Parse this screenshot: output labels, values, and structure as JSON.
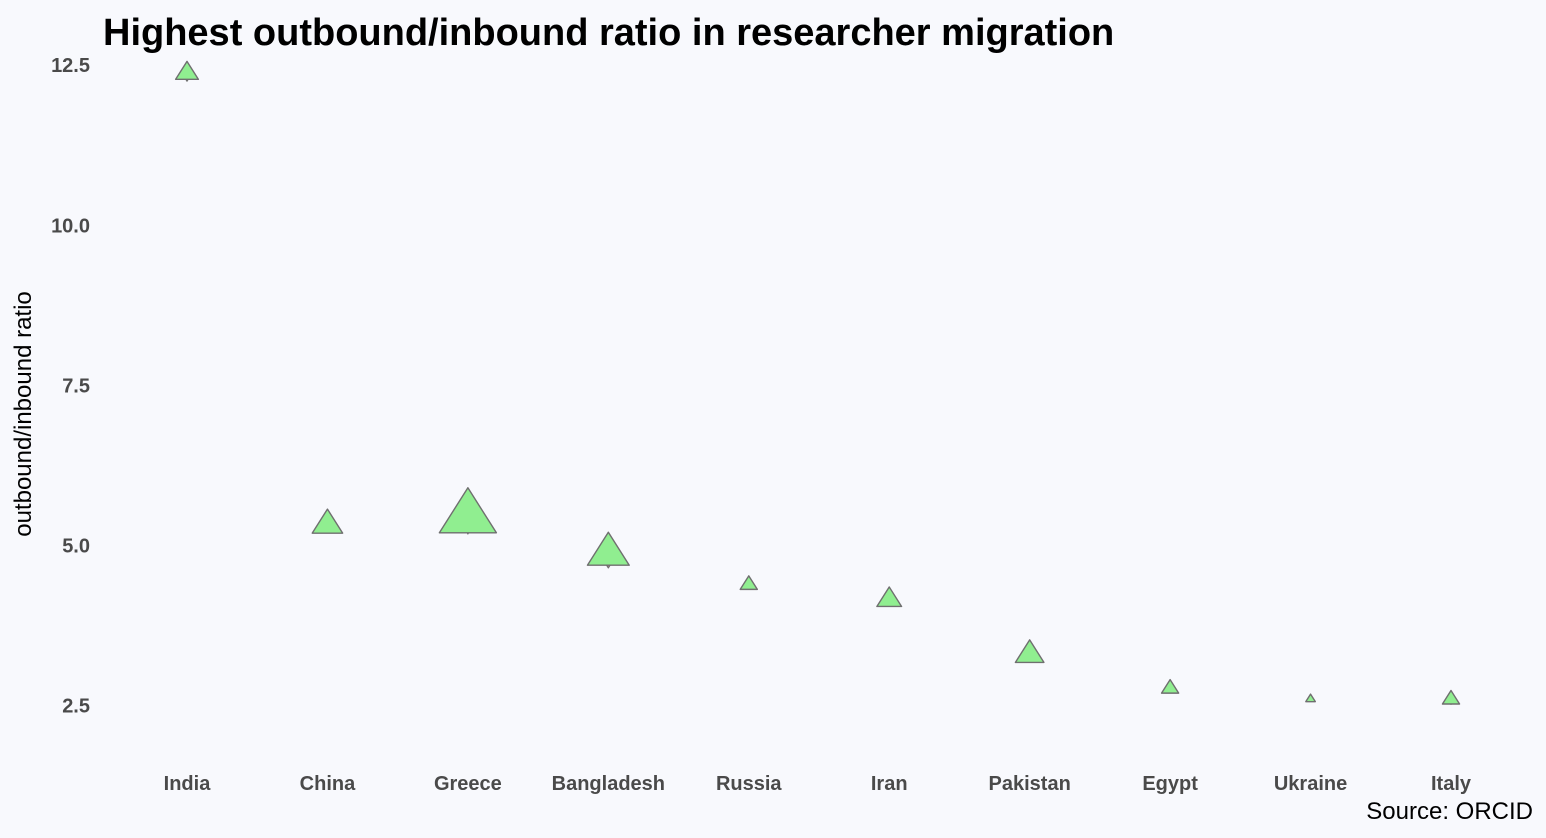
{
  "chart_data": {
    "type": "scatter",
    "title": "Highest outbound/inbound ratio in researcher migration",
    "ylabel": "outbound/inbound ratio",
    "xlabel": "",
    "source": "Source: ORCID",
    "categories": [
      "India",
      "China",
      "Greece",
      "Bangladesh",
      "Russia",
      "Iran",
      "Pakistan",
      "Egypt",
      "Ukraine",
      "Italy"
    ],
    "ylim": [
      1.9,
      13.05
    ],
    "yticks": [
      2.5,
      5.0,
      7.5,
      10.0,
      12.5
    ],
    "ytick_labels": [
      "2.5",
      "5.0",
      "7.5",
      "10.0",
      "12.5"
    ],
    "grid": false,
    "background_color": "#f8f9fd",
    "series": [
      {
        "marker": "triangle-up",
        "color": "#90ee90",
        "values": [
          12.42,
          5.38,
          5.55,
          4.95,
          4.42,
          4.2,
          3.35,
          2.8,
          2.62,
          2.63
        ],
        "size_weight": [
          0.6,
          0.8,
          1.5,
          1.1,
          0.45,
          0.65,
          0.75,
          0.45,
          0.25,
          0.45
        ]
      },
      {
        "marker": "triangle-down",
        "color": "#c4848a",
        "values": [
          12.25,
          5.2,
          5.18,
          4.65,
          4.33,
          4.06,
          3.2,
          2.7,
          2.58,
          2.52
        ],
        "size_weight": [
          0.15,
          0.25,
          0.45,
          0.3,
          0.12,
          0.2,
          0.28,
          0.16,
          0.1,
          0.18
        ]
      }
    ]
  }
}
